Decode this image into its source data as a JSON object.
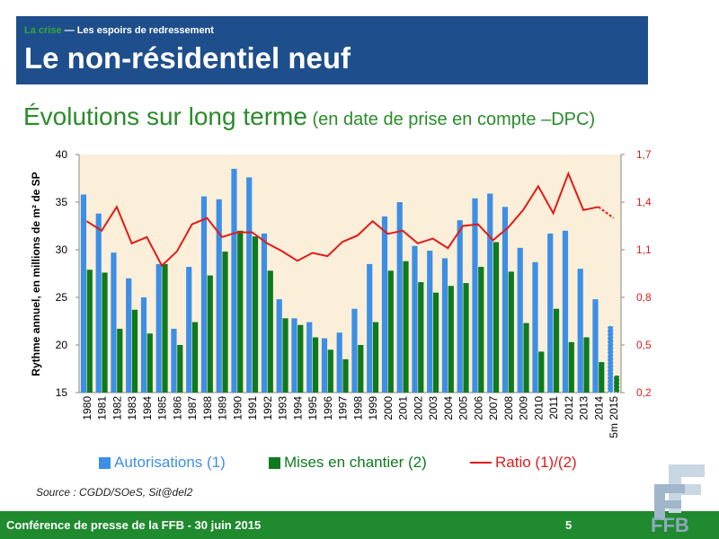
{
  "header": {
    "kicker_highlight": "La crise",
    "kicker_rest": " — Les espoirs de redressement",
    "title": "Le non-résidentiel neuf"
  },
  "subtitle": {
    "main": "Évolutions sur long terme",
    "note": " (en date de prise en compte –DPC)"
  },
  "chart_data": {
    "type": "bar",
    "categories": [
      "1980",
      "1981",
      "1982",
      "1983",
      "1984",
      "1985",
      "1986",
      "1987",
      "1988",
      "1989",
      "1990",
      "1991",
      "1992",
      "1993",
      "1994",
      "1995",
      "1996",
      "1997",
      "1998",
      "1999",
      "2000",
      "2001",
      "2002",
      "2003",
      "2004",
      "2005",
      "2006",
      "2007",
      "2008",
      "2009",
      "2010",
      "2011",
      "2012",
      "2013",
      "2014",
      "5m 2015"
    ],
    "ylabel": "Rythme annuel, en millions de m² de SP",
    "ylim": [
      15,
      40
    ],
    "yticks": [
      "15",
      "20",
      "25",
      "30",
      "35",
      "40"
    ],
    "y2lim": [
      0.2,
      1.7
    ],
    "y2ticks": [
      "0,2",
      "0,5",
      "0,8",
      "1,1",
      "1,4",
      "1,7"
    ],
    "grid": false,
    "legend_position": "bottom",
    "series": [
      {
        "name": "Autorisations (1)",
        "type": "bar",
        "axis": "left",
        "color": "#3d8fe6",
        "values": [
          35.8,
          33.8,
          29.7,
          27.0,
          25.0,
          28.5,
          21.7,
          28.2,
          35.6,
          35.3,
          38.5,
          37.6,
          31.7,
          24.8,
          22.8,
          22.4,
          20.7,
          21.3,
          23.8,
          28.5,
          33.5,
          35.0,
          30.4,
          29.9,
          29.1,
          33.1,
          35.4,
          35.9,
          34.5,
          30.2,
          28.7,
          31.7,
          32.0,
          28.0,
          24.8,
          22.0
        ]
      },
      {
        "name": "Mises en chantier (2)",
        "type": "bar",
        "axis": "left",
        "color": "#0e7a1e",
        "values": [
          27.9,
          27.6,
          21.7,
          23.7,
          21.2,
          28.5,
          20.0,
          22.4,
          27.3,
          29.8,
          32.0,
          31.4,
          27.8,
          22.8,
          22.1,
          20.8,
          19.5,
          18.5,
          20.0,
          22.4,
          27.8,
          28.8,
          26.6,
          25.5,
          26.2,
          26.5,
          28.2,
          30.8,
          27.7,
          22.3,
          19.3,
          23.8,
          20.3,
          20.8,
          18.2,
          16.8
        ]
      },
      {
        "name": "Ratio (1)/(2)",
        "type": "line",
        "axis": "right",
        "color": "#e01b1b",
        "values": [
          1.28,
          1.22,
          1.37,
          1.14,
          1.18,
          1.0,
          1.09,
          1.26,
          1.3,
          1.18,
          1.21,
          1.21,
          1.14,
          1.09,
          1.03,
          1.08,
          1.06,
          1.15,
          1.19,
          1.28,
          1.2,
          1.22,
          1.14,
          1.17,
          1.11,
          1.25,
          1.26,
          1.16,
          1.24,
          1.35,
          1.5,
          1.33,
          1.58,
          1.35,
          1.37,
          1.3
        ]
      }
    ]
  },
  "source": "Source : CGDD/SOeS, Sit@del2",
  "footer": {
    "text": "Conférence de presse de la FFB - 30 juin 2015",
    "page": "5"
  },
  "colors": {
    "header_band": "#1f4e8c",
    "title_green": "#2a8c2a",
    "footer_band": "#1f8a2e",
    "plot_background": "#fcefd9",
    "bar_blue": "#3d8fe6",
    "bar_green": "#0e7a1e",
    "ratio_red": "#e01b1b"
  },
  "logo": {
    "text": "FFB",
    "icon": "ffb-logo"
  }
}
